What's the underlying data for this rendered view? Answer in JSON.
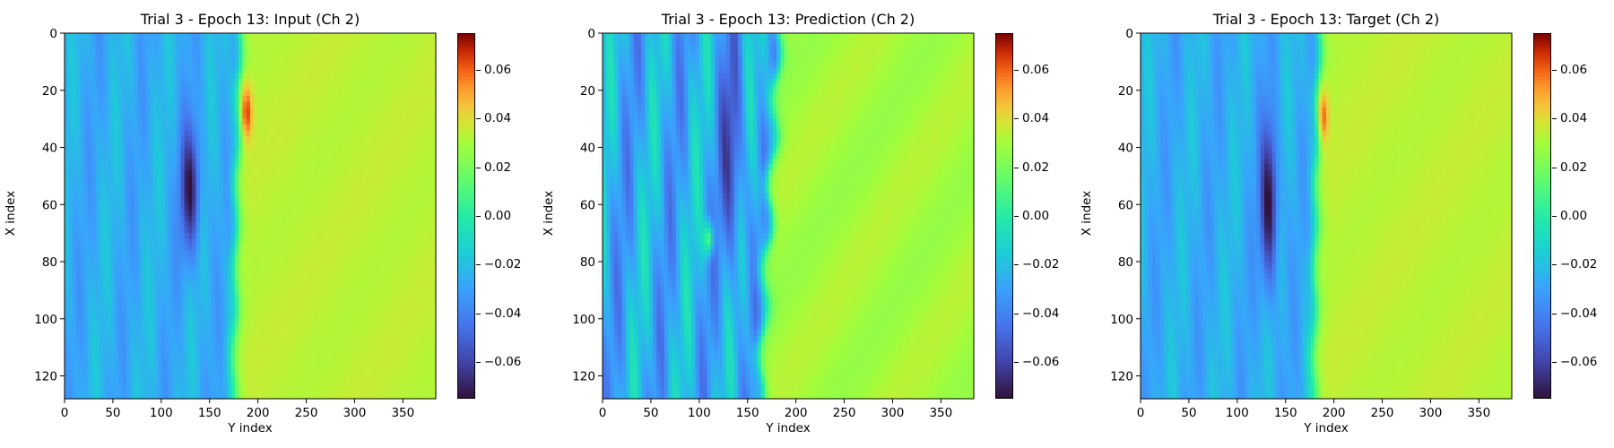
{
  "chart_data": [
    {
      "type": "heatmap",
      "title": "Trial 3 - Epoch 13: Input (Ch 2)",
      "xlabel": "Y index",
      "ylabel": "X index",
      "xlim": [
        0,
        384
      ],
      "ylim": [
        128,
        0
      ],
      "xticks": [
        "0",
        "50",
        "100",
        "150",
        "200",
        "250",
        "300",
        "350"
      ],
      "yticks": [
        "0",
        "20",
        "40",
        "60",
        "80",
        "100",
        "120"
      ],
      "colorbar": {
        "vmin": -0.075,
        "vmax": 0.075,
        "ticks": [
          "0.06",
          "0.04",
          "0.02",
          "0.00",
          "−0.02",
          "−0.04",
          "−0.06"
        ]
      },
      "colormap": "turbo",
      "field": {
        "front_y": 178,
        "front_slope": -0.05,
        "left_level": -0.026,
        "right_level": 0.034,
        "neg_blob": {
          "y": 130,
          "x": 55,
          "ry": 10,
          "rx": 22,
          "amp": -0.045
        },
        "pos_blob": {
          "y": 188,
          "x": 28,
          "ry": 6,
          "rx": 10,
          "amp": 0.035
        },
        "turbulence": 0.006
      }
    },
    {
      "type": "heatmap",
      "title": "Trial 3 - Epoch 13: Prediction (Ch 2)",
      "xlabel": "Y index",
      "ylabel": "X index",
      "xlim": [
        0,
        384
      ],
      "ylim": [
        128,
        0
      ],
      "xticks": [
        "0",
        "50",
        "100",
        "150",
        "200",
        "250",
        "300",
        "350"
      ],
      "yticks": [
        "0",
        "20",
        "40",
        "60",
        "80",
        "100",
        "120"
      ],
      "colorbar": {
        "vmin": -0.075,
        "vmax": 0.075,
        "ticks": [
          "0.06",
          "0.04",
          "0.02",
          "0.00",
          "−0.02",
          "−0.04",
          "−0.06"
        ]
      },
      "colormap": "turbo",
      "field": {
        "front_y": 172,
        "front_slope": -0.15,
        "left_level": -0.026,
        "right_level": 0.03,
        "neg_blob": {
          "y": 135,
          "x": 45,
          "ry": 12,
          "rx": 40,
          "amp": -0.03
        },
        "pos_blob": {
          "y": 110,
          "x": 72,
          "ry": 5,
          "rx": 6,
          "amp": 0.05
        },
        "turbulence": 0.014
      }
    },
    {
      "type": "heatmap",
      "title": "Trial 3 - Epoch 13: Target (Ch 2)",
      "xlabel": "Y index",
      "ylabel": "X index",
      "xlim": [
        0,
        384
      ],
      "ylim": [
        128,
        0
      ],
      "xticks": [
        "0",
        "50",
        "100",
        "150",
        "200",
        "250",
        "300",
        "350"
      ],
      "yticks": [
        "0",
        "20",
        "40",
        "60",
        "80",
        "100",
        "120"
      ],
      "colorbar": {
        "vmin": -0.075,
        "vmax": 0.075,
        "ticks": [
          "0.06",
          "0.04",
          "0.02",
          "0.00",
          "−0.02",
          "−0.04",
          "−0.06"
        ]
      },
      "colormap": "turbo",
      "field": {
        "front_y": 182,
        "front_slope": -0.05,
        "left_level": -0.026,
        "right_level": 0.034,
        "neg_blob": {
          "y": 133,
          "x": 60,
          "ry": 9,
          "rx": 28,
          "amp": -0.05
        },
        "pos_blob": {
          "y": 188,
          "x": 30,
          "ry": 6,
          "rx": 10,
          "amp": 0.035
        },
        "turbulence": 0.006
      }
    }
  ]
}
